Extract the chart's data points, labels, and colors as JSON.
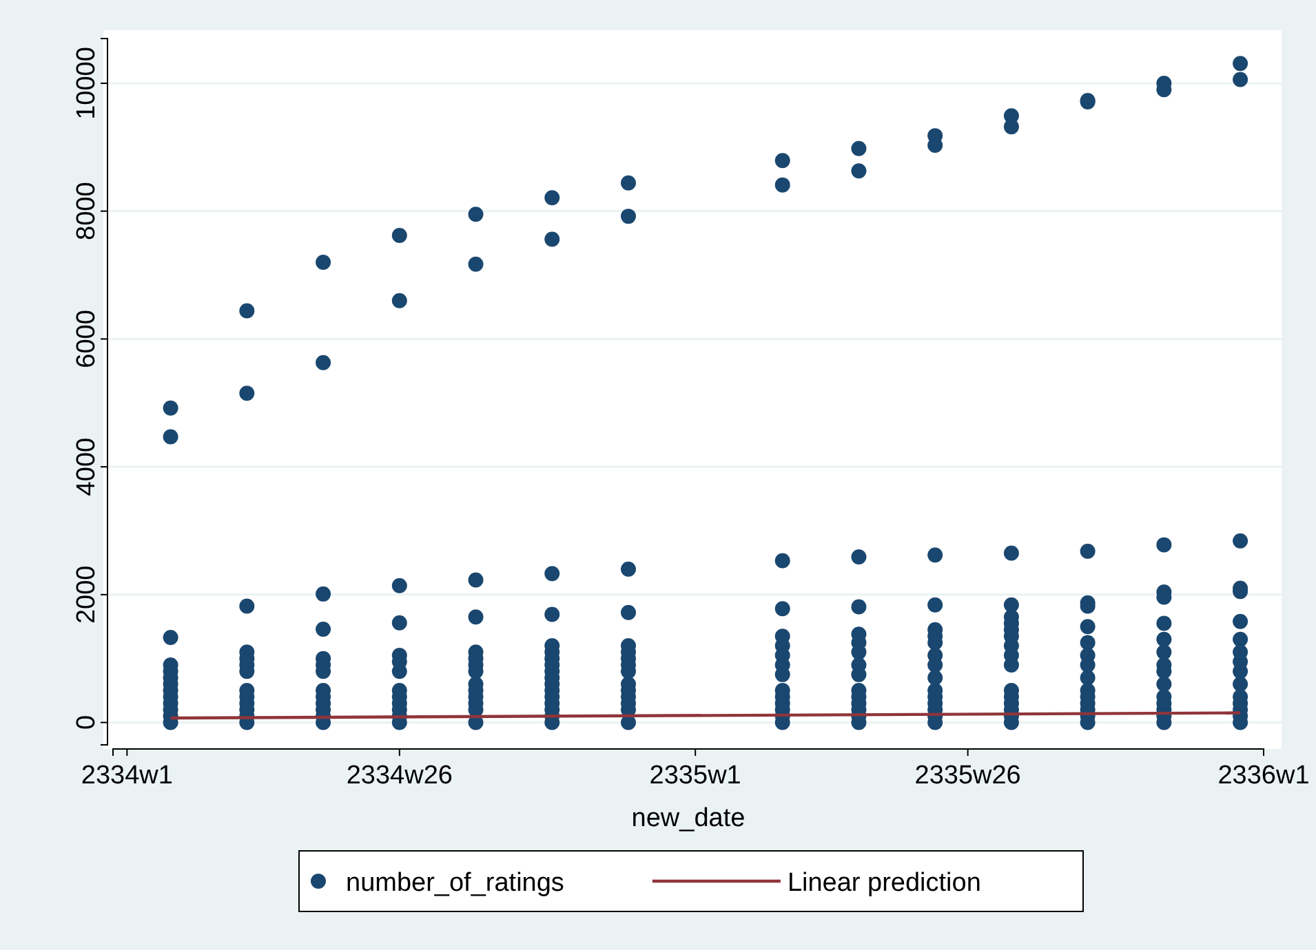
{
  "chart_data": {
    "type": "scatter",
    "xlabel": "new_date",
    "xlim": [
      "2333-12-23",
      "2336-01-01"
    ],
    "xticks": [
      {
        "value": "2334-01-01",
        "label": "2334w1"
      },
      {
        "value": "2334-06-25",
        "label": "2334w26"
      },
      {
        "value": "2335-01-01",
        "label": "2335w1"
      },
      {
        "value": "2335-06-25",
        "label": "2335w26"
      },
      {
        "value": "2336-01-01",
        "label": "2336w1"
      }
    ],
    "ylim": [
      -350,
      10700
    ],
    "yticks": [
      0,
      2000,
      4000,
      6000,
      8000,
      10000
    ],
    "grid": "y",
    "legend": "bottom",
    "series": [
      {
        "name": "number_of_ratings",
        "color": "#1a476f",
        "marker": "circle",
        "x": [
          "2334-01-29",
          "2334-01-29",
          "2334-01-29",
          "2334-01-29",
          "2334-01-29",
          "2334-01-29",
          "2334-01-29",
          "2334-01-29",
          "2334-01-29",
          "2334-01-29",
          "2334-01-29",
          "2334-01-29",
          "2334-01-29",
          "2334-03-19",
          "2334-03-19",
          "2334-03-19",
          "2334-03-19",
          "2334-03-19",
          "2334-03-19",
          "2334-03-19",
          "2334-03-19",
          "2334-03-19",
          "2334-03-19",
          "2334-03-19",
          "2334-03-19",
          "2334-03-19",
          "2334-05-07",
          "2334-05-07",
          "2334-05-07",
          "2334-05-07",
          "2334-05-07",
          "2334-05-07",
          "2334-05-07",
          "2334-05-07",
          "2334-05-07",
          "2334-05-07",
          "2334-05-07",
          "2334-05-07",
          "2334-05-07",
          "2334-06-25",
          "2334-06-25",
          "2334-06-25",
          "2334-06-25",
          "2334-06-25",
          "2334-06-25",
          "2334-06-25",
          "2334-06-25",
          "2334-06-25",
          "2334-06-25",
          "2334-06-25",
          "2334-06-25",
          "2334-06-25",
          "2334-08-13",
          "2334-08-13",
          "2334-08-13",
          "2334-08-13",
          "2334-08-13",
          "2334-08-13",
          "2334-08-13",
          "2334-08-13",
          "2334-08-13",
          "2334-08-13",
          "2334-08-13",
          "2334-08-13",
          "2334-08-13",
          "2334-08-13",
          "2334-10-01",
          "2334-10-01",
          "2334-10-01",
          "2334-10-01",
          "2334-10-01",
          "2334-10-01",
          "2334-10-01",
          "2334-10-01",
          "2334-10-01",
          "2334-10-01",
          "2334-10-01",
          "2334-10-01",
          "2334-10-01",
          "2334-10-01",
          "2334-10-01",
          "2334-10-01",
          "2334-10-01",
          "2334-11-19",
          "2334-11-19",
          "2334-11-19",
          "2334-11-19",
          "2334-11-19",
          "2334-11-19",
          "2334-11-19",
          "2334-11-19",
          "2334-11-19",
          "2334-11-19",
          "2334-11-19",
          "2334-11-19",
          "2334-11-19",
          "2334-11-19",
          "2334-11-19",
          "2335-02-26",
          "2335-02-26",
          "2335-02-26",
          "2335-02-26",
          "2335-02-26",
          "2335-02-26",
          "2335-02-26",
          "2335-02-26",
          "2335-02-26",
          "2335-02-26",
          "2335-02-26",
          "2335-02-26",
          "2335-02-26",
          "2335-02-26",
          "2335-02-26",
          "2335-04-16",
          "2335-04-16",
          "2335-04-16",
          "2335-04-16",
          "2335-04-16",
          "2335-04-16",
          "2335-04-16",
          "2335-04-16",
          "2335-04-16",
          "2335-04-16",
          "2335-04-16",
          "2335-04-16",
          "2335-04-16",
          "2335-04-16",
          "2335-04-16",
          "2335-06-04",
          "2335-06-04",
          "2335-06-04",
          "2335-06-04",
          "2335-06-04",
          "2335-06-04",
          "2335-06-04",
          "2335-06-04",
          "2335-06-04",
          "2335-06-04",
          "2335-06-04",
          "2335-06-04",
          "2335-06-04",
          "2335-06-04",
          "2335-06-04",
          "2335-06-04",
          "2335-07-23",
          "2335-07-23",
          "2335-07-23",
          "2335-07-23",
          "2335-07-23",
          "2335-07-23",
          "2335-07-23",
          "2335-07-23",
          "2335-07-23",
          "2335-07-23",
          "2335-07-23",
          "2335-07-23",
          "2335-07-23",
          "2335-07-23",
          "2335-07-23",
          "2335-07-23",
          "2335-07-23",
          "2335-09-10",
          "2335-09-10",
          "2335-09-10",
          "2335-09-10",
          "2335-09-10",
          "2335-09-10",
          "2335-09-10",
          "2335-09-10",
          "2335-09-10",
          "2335-09-10",
          "2335-09-10",
          "2335-09-10",
          "2335-09-10",
          "2335-09-10",
          "2335-09-10",
          "2335-09-10",
          "2335-10-29",
          "2335-10-29",
          "2335-10-29",
          "2335-10-29",
          "2335-10-29",
          "2335-10-29",
          "2335-10-29",
          "2335-10-29",
          "2335-10-29",
          "2335-10-29",
          "2335-10-29",
          "2335-10-29",
          "2335-10-29",
          "2335-10-29",
          "2335-10-29",
          "2335-10-29",
          "2335-12-17",
          "2335-12-17",
          "2335-12-17",
          "2335-12-17",
          "2335-12-17",
          "2335-12-17",
          "2335-12-17",
          "2335-12-17",
          "2335-12-17",
          "2335-12-17",
          "2335-12-17",
          "2335-12-17",
          "2335-12-17",
          "2335-12-17",
          "2335-12-17",
          "2335-12-17"
        ],
        "values": [
          4920,
          4470,
          1330,
          900,
          800,
          700,
          600,
          500,
          400,
          300,
          200,
          100,
          0,
          6440,
          5150,
          1820,
          1100,
          1000,
          900,
          800,
          500,
          400,
          300,
          200,
          100,
          0,
          7200,
          5630,
          2010,
          1460,
          1000,
          900,
          800,
          500,
          400,
          300,
          200,
          100,
          0,
          7620,
          6600,
          2140,
          1560,
          1050,
          950,
          800,
          500,
          400,
          300,
          200,
          100,
          0,
          7950,
          7170,
          2230,
          1650,
          1100,
          1000,
          900,
          800,
          600,
          500,
          400,
          300,
          200,
          0,
          8210,
          7560,
          2330,
          1690,
          1200,
          1100,
          1000,
          900,
          800,
          700,
          600,
          500,
          400,
          300,
          200,
          100,
          0,
          8440,
          7920,
          2400,
          1720,
          1200,
          1100,
          1000,
          900,
          800,
          600,
          500,
          400,
          300,
          200,
          0,
          8790,
          8410,
          2530,
          1780,
          1350,
          1200,
          1050,
          900,
          750,
          500,
          400,
          300,
          200,
          100,
          0,
          8980,
          8630,
          2590,
          1810,
          1380,
          1250,
          1100,
          900,
          750,
          500,
          400,
          300,
          200,
          100,
          0,
          9180,
          9030,
          2620,
          1840,
          1450,
          1350,
          1250,
          1050,
          900,
          700,
          500,
          400,
          300,
          200,
          100,
          0,
          9490,
          9320,
          2650,
          1840,
          1650,
          1550,
          1450,
          1350,
          1200,
          1050,
          900,
          500,
          400,
          300,
          200,
          100,
          0,
          9730,
          9710,
          2680,
          1870,
          1820,
          1500,
          1250,
          1050,
          900,
          700,
          500,
          400,
          300,
          200,
          100,
          0,
          10000,
          9900,
          2780,
          2040,
          1960,
          1550,
          1300,
          1100,
          900,
          800,
          600,
          400,
          300,
          200,
          100,
          0,
          10310,
          10060,
          2840,
          2100,
          2050,
          1580,
          1300,
          1100,
          950,
          800,
          600,
          400,
          300,
          200,
          100,
          0
        ]
      },
      {
        "name": "Linear prediction",
        "type": "line",
        "color": "#90353b",
        "x": [
          "2334-01-29",
          "2335-12-17"
        ],
        "values": [
          70,
          150
        ]
      }
    ]
  }
}
